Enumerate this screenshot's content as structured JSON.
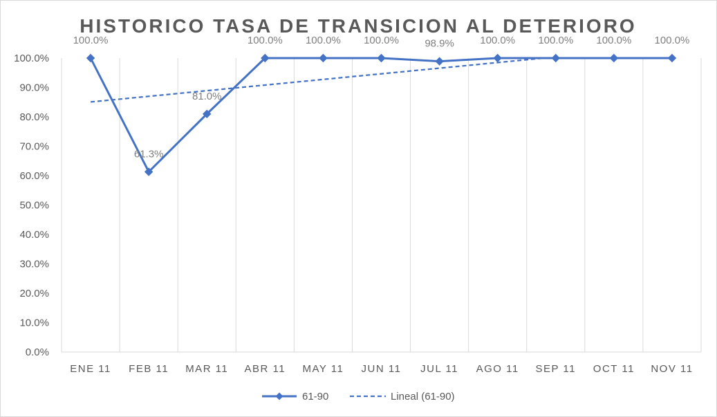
{
  "chart_data": {
    "type": "line",
    "title": "HISTORICO TASA DE TRANSICION AL DETERIORO",
    "categories": [
      "ENE 11",
      "FEB 11",
      "MAR 11",
      "ABR 11",
      "MAY 11",
      "JUN 11",
      "JUL 11",
      "AGO 11",
      "SEP 11",
      "OCT 11",
      "NOV 11"
    ],
    "series": [
      {
        "name": "61-90",
        "values": [
          100.0,
          61.3,
          81.0,
          100.0,
          100.0,
          100.0,
          98.9,
          100.0,
          100.0,
          100.0,
          100.0
        ],
        "data_labels": [
          "100.0%",
          "61.3%",
          "81.0%",
          "100.0%",
          "100.0%",
          "100.0%",
          "98.9%",
          "100.0%",
          "100.0%",
          "100.0%",
          "100.0%"
        ],
        "color": "#4472c4",
        "marker": "diamond"
      }
    ],
    "trendline": {
      "name": "Lineal (61-90)",
      "type": "linear",
      "color": "#4472c4",
      "style": "dashed"
    },
    "yticks": [
      "0.0%",
      "10.0%",
      "20.0%",
      "30.0%",
      "40.0%",
      "50.0%",
      "60.0%",
      "70.0%",
      "80.0%",
      "90.0%",
      "100.0%"
    ],
    "ylim": [
      0,
      100
    ],
    "grid": "vertical",
    "legend_position": "bottom"
  }
}
